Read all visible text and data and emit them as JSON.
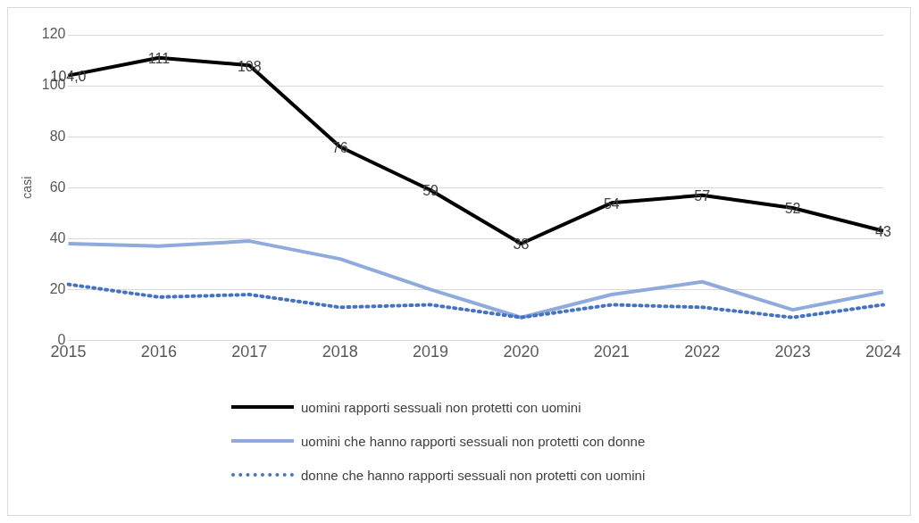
{
  "chart_data": {
    "type": "line",
    "ylabel": "casi",
    "categories": [
      "2015",
      "2016",
      "2017",
      "2018",
      "2019",
      "2020",
      "2021",
      "2022",
      "2023",
      "2024"
    ],
    "ylim": [
      0,
      120
    ],
    "yticks": [
      0,
      20,
      40,
      60,
      80,
      100,
      120
    ],
    "grid": "y",
    "legend": "bottom",
    "series": [
      {
        "name": "uomini rapporti sessuali non protetti con uomini",
        "color": "#000000",
        "line_style": "solid",
        "values": [
          104,
          111,
          108,
          76,
          59,
          38,
          54,
          57,
          52,
          43
        ],
        "value_labels": [
          "104,0",
          "111",
          "108",
          "76",
          "59",
          "38",
          "54",
          "57",
          "52",
          "43"
        ]
      },
      {
        "name": "uomini che hanno rapporti sessuali non protetti con donne",
        "color": "#8faadc",
        "line_style": "solid",
        "values": [
          38,
          37,
          39,
          32,
          20,
          9,
          18,
          23,
          12,
          19
        ]
      },
      {
        "name": "donne che hanno rapporti sessuali non protetti con uomini",
        "color": "#4472c4",
        "line_style": "dotted",
        "values": [
          22,
          17,
          18,
          13,
          14,
          9,
          14,
          13,
          9,
          14
        ]
      }
    ]
  }
}
